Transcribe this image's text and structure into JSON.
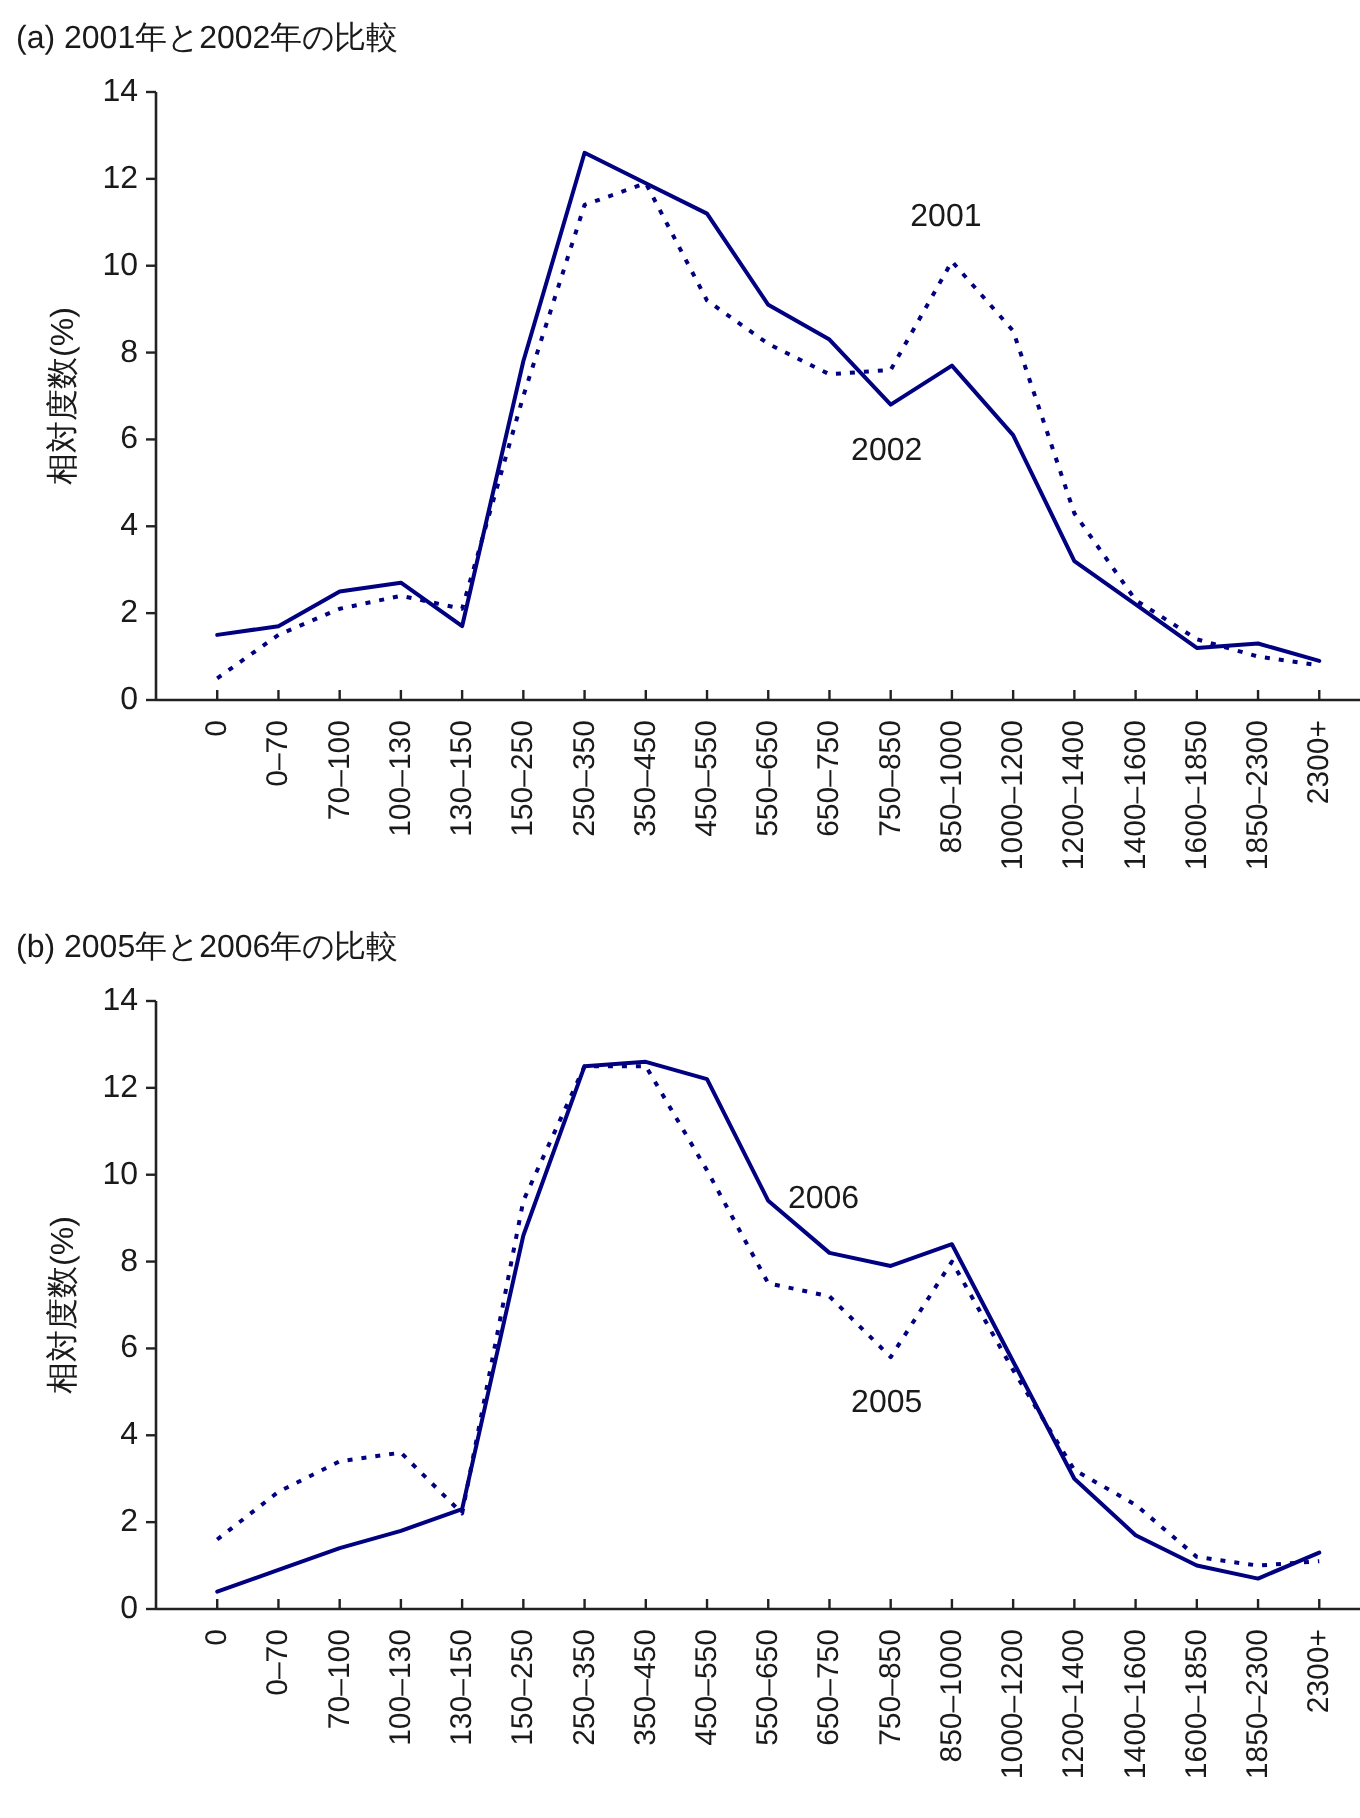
{
  "chart_data": [
    {
      "type": "line",
      "title": "(a) 2001年と2002年の比較",
      "ylabel": "相対度数(%)",
      "categories": [
        "0",
        "0–70",
        "70–100",
        "100–130",
        "130–150",
        "150–250",
        "250–350",
        "350–450",
        "450–550",
        "550–650",
        "650–750",
        "750–850",
        "850–1000",
        "1000–1200",
        "1200–1400",
        "1400–1600",
        "1600–1850",
        "1850–2300",
        "2300+"
      ],
      "series": [
        {
          "name": "2001",
          "color": "#000080",
          "line_style": "dotted",
          "values": [
            0.5,
            1.5,
            2.1,
            2.4,
            2.1,
            7.0,
            11.4,
            11.9,
            9.2,
            8.2,
            7.5,
            7.6,
            10.1,
            8.5,
            4.3,
            2.3,
            1.4,
            1.0,
            0.8
          ]
        },
        {
          "name": "2002",
          "color": "#000080",
          "line_style": "solid",
          "values": [
            1.5,
            1.7,
            2.5,
            2.7,
            1.7,
            7.8,
            12.6,
            11.9,
            11.2,
            9.1,
            8.3,
            6.8,
            7.7,
            6.1,
            3.2,
            2.2,
            1.2,
            1.3,
            0.9
          ]
        }
      ],
      "ylim": [
        0,
        14
      ],
      "yticks": [
        0,
        2,
        4,
        6,
        8,
        10,
        12,
        14
      ]
    },
    {
      "type": "line",
      "title": "(b) 2005年と2006年の比較",
      "ylabel": "相対度数(%)",
      "categories": [
        "0",
        "0–70",
        "70–100",
        "100–130",
        "130–150",
        "150–250",
        "250–350",
        "350–450",
        "450–550",
        "550–650",
        "650–750",
        "750–850",
        "850–1000",
        "1000–1200",
        "1200–1400",
        "1400–1600",
        "1600–1850",
        "1850–2300",
        "2300+"
      ],
      "series": [
        {
          "name": "2005",
          "color": "#000080",
          "line_style": "dotted",
          "values": [
            1.6,
            2.7,
            3.4,
            3.6,
            2.2,
            9.4,
            12.5,
            12.5,
            10.1,
            7.5,
            7.2,
            5.8,
            8.0,
            5.5,
            3.2,
            2.4,
            1.2,
            1.0,
            1.1
          ]
        },
        {
          "name": "2006",
          "color": "#000080",
          "line_style": "solid",
          "values": [
            0.4,
            0.9,
            1.4,
            1.8,
            2.3,
            8.6,
            12.5,
            12.6,
            12.2,
            9.4,
            8.2,
            7.9,
            8.4,
            5.7,
            3.0,
            1.7,
            1.0,
            0.7,
            1.3
          ]
        }
      ],
      "ylim": [
        0,
        14
      ],
      "yticks": [
        0,
        2,
        4,
        6,
        8,
        10,
        12,
        14
      ]
    }
  ]
}
